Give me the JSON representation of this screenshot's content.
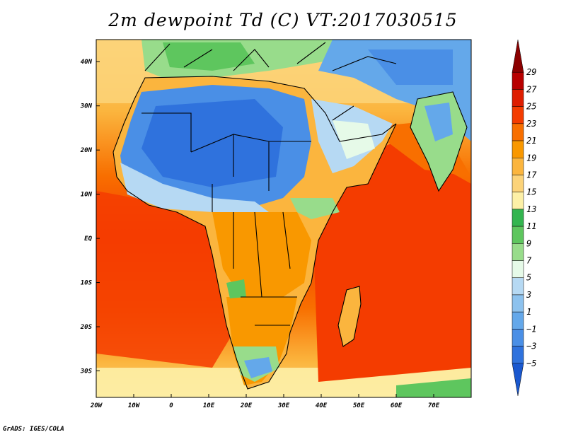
{
  "title": "2m dewpoint Td (C) VT:2017030515",
  "map": {
    "lon_range": [
      -20,
      80
    ],
    "lat_range": [
      -36,
      45
    ],
    "x_ticks": [
      "20W",
      "10W",
      "0",
      "10E",
      "20E",
      "30E",
      "40E",
      "50E",
      "60E",
      "70E"
    ],
    "y_ticks": [
      "40N",
      "30N",
      "20N",
      "10N",
      "EQ",
      "10S",
      "20S",
      "30S"
    ]
  },
  "colorbar": {
    "labels": [
      "29",
      "27",
      "25",
      "23",
      "21",
      "19",
      "17",
      "15",
      "13",
      "11",
      "9",
      "7",
      "5",
      "3",
      "1",
      "−1",
      "−3",
      "−5"
    ],
    "colors": [
      "#8b0000",
      "#b80000",
      "#de1d00",
      "#f43c00",
      "#f86f00",
      "#f99800",
      "#fbb53e",
      "#fcd379",
      "#fdf0a7",
      "#33b54f",
      "#5ec65e",
      "#98dc8b",
      "#e6fae8",
      "#b6d9f3",
      "#8dc2ee",
      "#64a8ea",
      "#4a8fe6",
      "#2f72dd",
      "#1a58cf"
    ]
  },
  "footer": "GrADS: IGES/COLA"
}
